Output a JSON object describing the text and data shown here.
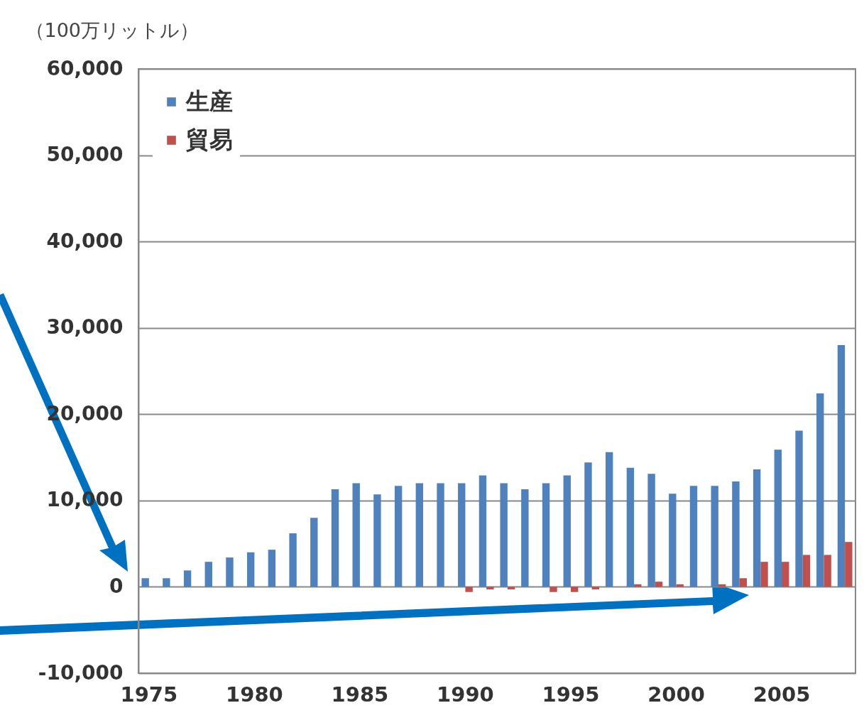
{
  "chart_data": {
    "type": "bar",
    "ylabel": "（100万リットル）",
    "categories": [
      "1975",
      null,
      null,
      null,
      null,
      "1980",
      null,
      null,
      null,
      null,
      "1985",
      null,
      null,
      null,
      null,
      "1990",
      null,
      null,
      null,
      null,
      "1995",
      null,
      null,
      null,
      null,
      "2000",
      null,
      null,
      null,
      null,
      "2005",
      null,
      null,
      null
    ],
    "series": [
      {
        "name": "生産",
        "color": "#4f81bd",
        "values": [
          1000,
          1000,
          1900,
          2900,
          3400,
          4000,
          4300,
          6200,
          8000,
          11300,
          12000,
          10700,
          11700,
          12000,
          12000,
          12000,
          12900,
          12000,
          11300,
          12000,
          12900,
          14400,
          15600,
          13800,
          13100,
          10800,
          11700,
          11700,
          12200,
          13600,
          15900,
          18100,
          22400,
          28000
        ]
      },
      {
        "name": "貿易",
        "color": "#c0504d",
        "values": [
          0,
          0,
          0,
          0,
          0,
          0,
          0,
          0,
          0,
          0,
          0,
          0,
          0,
          0,
          0,
          -600,
          -300,
          -300,
          0,
          -600,
          -600,
          -300,
          0,
          300,
          600,
          300,
          0,
          300,
          1000,
          2900,
          2900,
          3700,
          3700,
          5200
        ]
      }
    ],
    "ylim": [
      -10000,
      60000
    ],
    "yticks": [
      {
        "value": -10000,
        "label": "-10,000"
      },
      0,
      {
        "value": 10000,
        "label": "10,000"
      },
      {
        "value": 20000,
        "label": "20,000"
      },
      {
        "value": 30000,
        "label": "30,000"
      },
      {
        "value": 40000,
        "label": "40,000"
      },
      {
        "value": 50000,
        "label": "50,000"
      },
      {
        "value": 60000,
        "label": "60,000"
      }
    ],
    "grid": "y",
    "legend": "top left"
  }
}
